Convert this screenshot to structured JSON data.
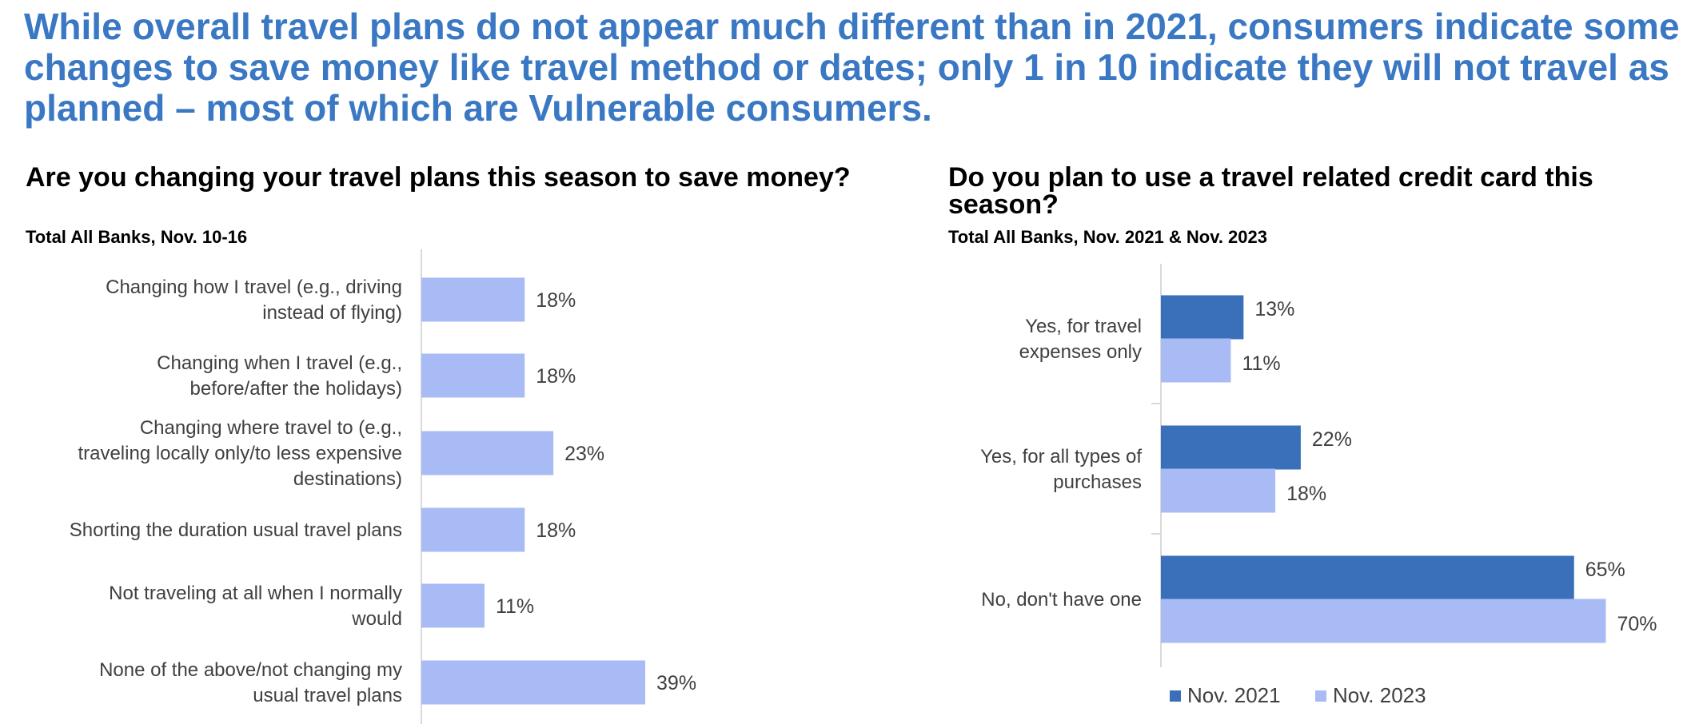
{
  "headline": "While overall travel plans do not appear much different than in 2021, consumers indicate some changes to save money like travel method or dates; only 1 in 10 indicate they will not travel as planned – most of which are Vulnerable consumers.",
  "colors": {
    "headline": "#3a78c4",
    "nov2021": "#3a6fba",
    "nov2023": "#a9bbf5"
  },
  "chart_data": [
    {
      "type": "bar",
      "orientation": "horizontal",
      "title": "Are you changing your travel plans this season to save money?",
      "subtitle": "Total All Banks, Nov. 10-16",
      "categories": [
        [
          "Changing how I travel (e.g., driving",
          "instead of flying)"
        ],
        [
          "Changing when I travel (e.g.,",
          "before/after the holidays)"
        ],
        [
          "Changing where travel to (e.g.,",
          "traveling locally only/to less expensive",
          "destinations)"
        ],
        [
          "Shorting the duration usual travel plans"
        ],
        [
          "Not traveling at all when I normally",
          "would"
        ],
        [
          "None of the above/not changing my",
          "usual travel plans"
        ]
      ],
      "values": [
        18,
        18,
        23,
        18,
        11,
        39
      ],
      "value_labels": [
        "18%",
        "18%",
        "23%",
        "18%",
        "11%",
        "39%"
      ],
      "unit": "%",
      "grid": false,
      "legend": "none"
    },
    {
      "type": "bar",
      "orientation": "horizontal",
      "title": "Do you plan to use a travel related credit card this season?",
      "subtitle": "Total All Banks, Nov. 2021 & Nov. 2023",
      "categories": [
        [
          "Yes, for travel",
          "expenses only"
        ],
        [
          "Yes, for all types of",
          "purchases"
        ],
        [
          "No, don't have one"
        ]
      ],
      "series": [
        {
          "name": "Nov. 2021",
          "values": [
            13,
            22,
            65
          ],
          "value_labels": [
            "13%",
            "22%",
            "65%"
          ]
        },
        {
          "name": "Nov. 2023",
          "values": [
            11,
            18,
            70
          ],
          "value_labels": [
            "11%",
            "18%",
            "70%"
          ]
        }
      ],
      "unit": "%",
      "grid": false,
      "legend": "bottom"
    }
  ]
}
